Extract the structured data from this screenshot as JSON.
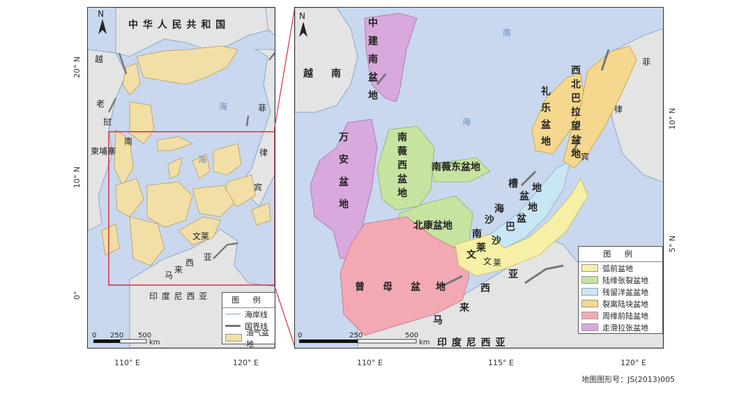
{
  "left_map": {
    "north_label": "N",
    "country_labels": {
      "china": "中 华 人 民 共 和 国",
      "vietnam": "越",
      "laos_1": "老",
      "laos_2": "挝",
      "cambodia": "柬埔寨",
      "indonesia": "印 度 尼 西 亚",
      "brunei": "文莱",
      "malaysia_1": "西",
      "malaysia_2": "亚",
      "malaysia_3": "马",
      "malaysia_4": "来",
      "philippines_1": "菲",
      "philippines_2": "律",
      "philippines_3": "宾"
    },
    "sea_labels": {
      "s1": "南",
      "s2": "海",
      "s3": "海"
    },
    "axis": {
      "lat_20": "20° N",
      "lat_10": "10° N",
      "lat_0": "0°",
      "lon_110": "110° E",
      "lon_120": "120° E"
    },
    "scale": {
      "t0": "0",
      "t250": "250",
      "t500": "500",
      "unit": "km"
    },
    "legend": {
      "title": "图 例",
      "items": [
        {
          "label": "海岸线",
          "color": "#8aa6c8"
        },
        {
          "label": "国界线",
          "color": "#777777"
        },
        {
          "label": "油气盆地",
          "color": "#f2dfa6"
        }
      ]
    }
  },
  "right_map": {
    "north_label": "N",
    "labels": {
      "vietnam_1": "越",
      "vietnam_2": "南",
      "sea_1": "南",
      "sea_2": "海",
      "zhongjiannan": "中建南盆地",
      "wanan": "万安盆地",
      "nanweixi": "南薇西盆地",
      "nanweidong": "南薇东盆地",
      "beikang": "北康盆地",
      "zengmu_1": "曾",
      "zengmu_2": "母",
      "zengmu_3": "盆",
      "zengmu_4": "地",
      "nansha_a": "南",
      "nansha_b": "沙",
      "nansha_c": "海",
      "nansha_d": "槽",
      "nansha_e": "盆",
      "nansha_f": "地",
      "nanshaba_1": "沙",
      "nanshaba_2": "巴",
      "nanshaba_3": "盆",
      "nanshaba_4": "地",
      "liyue": "礼乐盆地",
      "xibeibalawang": "西北巴拉望盆地",
      "wenlai_1": "文",
      "wenlai_2": "莱",
      "wenlai_3": "文",
      "wenlai_4": "莱",
      "malaysia_1": "西",
      "malaysia_2": "亚",
      "malaysia_3": "来",
      "malaysia_4": "马",
      "indonesia": "印 度 尼 西 亚",
      "philippines_1": "菲",
      "philippines_2": "律",
      "philippines_3": "宾"
    },
    "axis": {
      "lat_10": "10° N",
      "lat_5": "5° N",
      "lon_110": "110° E",
      "lon_115": "115° E",
      "lon_120": "120° E"
    },
    "scale": {
      "t0": "0",
      "t250": "250",
      "t500": "500",
      "unit": "km"
    },
    "legend": {
      "title": "图 例",
      "items": [
        {
          "label": "弧前盆地",
          "color": "#f6f0a6"
        },
        {
          "label": "陆缘张裂盆地",
          "color": "#c6e3a0"
        },
        {
          "label": "残留洋盆盆地",
          "color": "#c9e6f4"
        },
        {
          "label": "裂离陆块盆地",
          "color": "#f5d88e"
        },
        {
          "label": "周缘前陆盆地",
          "color": "#f3a9b4"
        },
        {
          "label": "走滑拉张盆地",
          "color": "#d9a8dc"
        }
      ]
    }
  },
  "credit": "地图图形号：JS(2013)005",
  "colors": {
    "sea": "#c9d8ee",
    "land": "#e4e4e4",
    "basin": "#f2dfa6",
    "frame_red": "#d4303a"
  }
}
